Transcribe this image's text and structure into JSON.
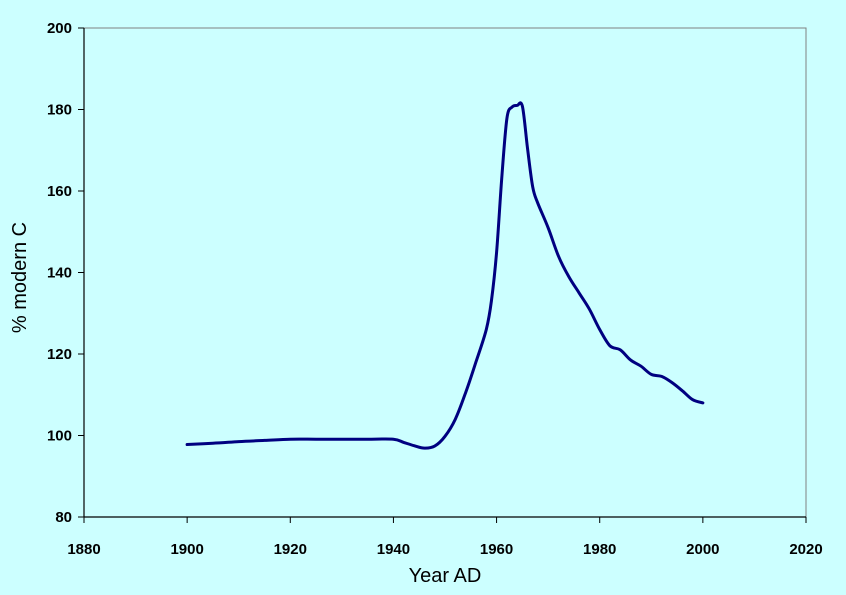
{
  "chart_data": {
    "type": "line",
    "title": "",
    "xlabel": "Year AD",
    "ylabel": "% modern C",
    "xlim": [
      1880,
      2020
    ],
    "ylim": [
      80,
      200
    ],
    "xticks": [
      1880,
      1900,
      1920,
      1940,
      1960,
      1980,
      2000,
      2020
    ],
    "yticks": [
      80,
      100,
      120,
      140,
      160,
      180,
      200
    ],
    "grid": false,
    "legend": "none",
    "colors": {
      "background": "#CCFFFF",
      "plot_area": "#CCFFFF",
      "line": "#000080",
      "axis": "#000000"
    },
    "series": [
      {
        "x": [
          1900,
          1905,
          1910,
          1915,
          1920,
          1925,
          1930,
          1935,
          1940,
          1942,
          1944,
          1946,
          1948,
          1950,
          1952,
          1954,
          1956,
          1958,
          1959,
          1960,
          1961,
          1962,
          1963,
          1964,
          1965,
          1966,
          1967,
          1968,
          1970,
          1972,
          1974,
          1976,
          1978,
          1980,
          1982,
          1984,
          1986,
          1988,
          1990,
          1992,
          1994,
          1996,
          1998,
          2000
        ],
        "y": [
          97.8,
          98.1,
          98.5,
          98.8,
          99.1,
          99.1,
          99.1,
          99.1,
          99.1,
          98.3,
          97.5,
          96.9,
          97.4,
          99.8,
          104,
          110.5,
          118,
          126,
          133,
          145,
          163,
          177.8,
          180.6,
          181,
          180.8,
          170.5,
          161,
          157,
          151,
          144,
          139,
          135,
          131,
          126,
          122,
          121,
          118.5,
          117,
          115,
          114.5,
          113,
          111,
          108.8,
          108
        ]
      }
    ]
  }
}
